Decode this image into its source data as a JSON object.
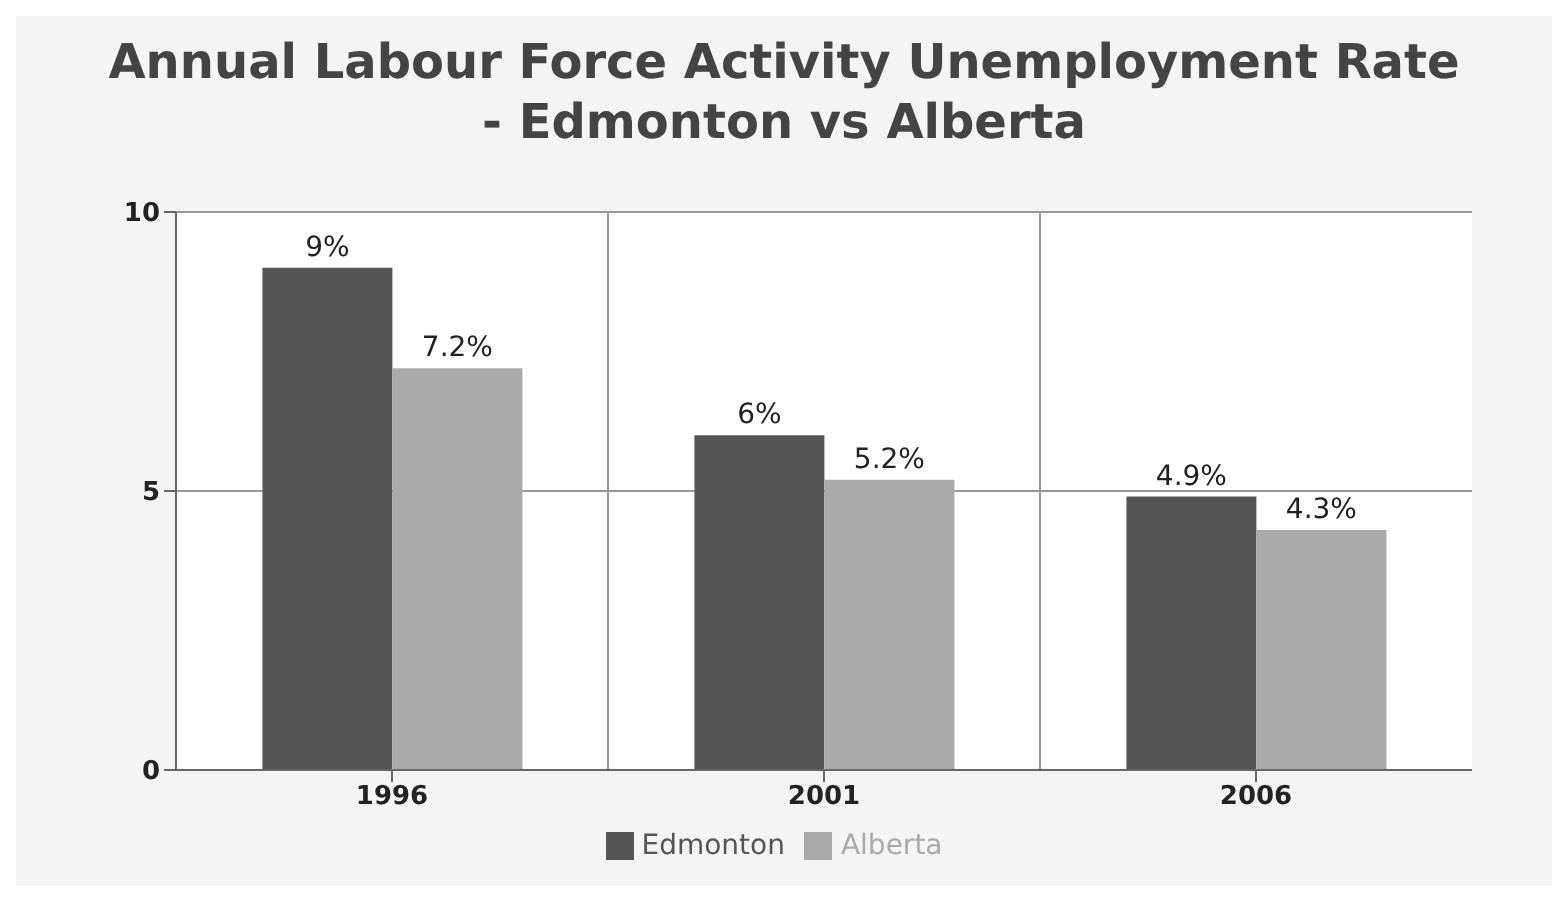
{
  "chart_data": {
    "type": "bar",
    "title": "Annual Labour Force Activity Unemployment Rate - Edmonton vs Alberta",
    "categories": [
      "1996",
      "2001",
      "2006"
    ],
    "series": [
      {
        "name": "Edmonton",
        "color": "#555555",
        "values": [
          9,
          6,
          4.9
        ],
        "value_labels": [
          "9%",
          "6%",
          "4.9%"
        ]
      },
      {
        "name": "Alberta",
        "color": "#aaaaaa",
        "values": [
          7.2,
          5.2,
          4.3
        ],
        "value_labels": [
          "7.2%",
          "5.2%",
          "4.3%"
        ]
      }
    ],
    "ylim": [
      0,
      10
    ],
    "yticks": [
      0,
      5,
      10
    ],
    "grid": true,
    "legend": "bottom"
  }
}
